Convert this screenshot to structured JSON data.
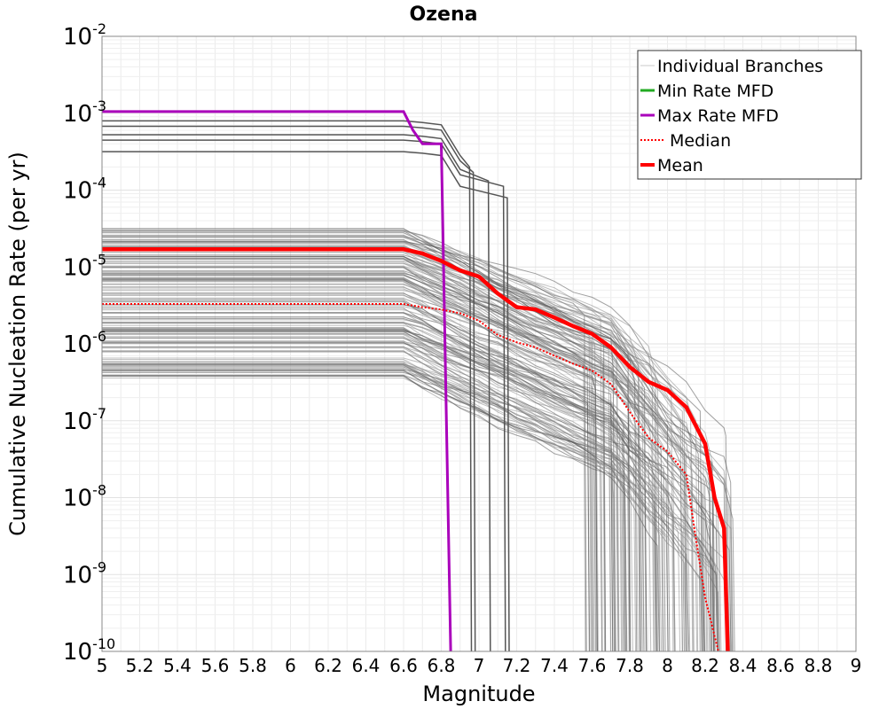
{
  "chart_data": {
    "type": "line",
    "title": "Ozena",
    "xlabel": "Magnitude",
    "ylabel": "Cumulative Nucleation Rate (per yr)",
    "xlim": [
      5,
      9
    ],
    "ylim": [
      1e-10,
      0.01
    ],
    "yscale": "log",
    "grid": true,
    "legend_position": "top-right",
    "x_ticks": [
      "5",
      "5.2",
      "5.4",
      "5.6",
      "5.8",
      "6",
      "6.2",
      "6.4",
      "6.6",
      "6.8",
      "7",
      "7.2",
      "7.4",
      "7.6",
      "7.8",
      "8",
      "8.2",
      "8.4",
      "8.6",
      "8.8",
      "9"
    ],
    "y_ticks": [
      {
        "base": "10",
        "exp": "-10",
        "value": 1e-10
      },
      {
        "base": "10",
        "exp": "-9",
        "value": 1e-09
      },
      {
        "base": "10",
        "exp": "-8",
        "value": 1e-08
      },
      {
        "base": "10",
        "exp": "-7",
        "value": 1e-07
      },
      {
        "base": "10",
        "exp": "-6",
        "value": 1e-06
      },
      {
        "base": "10",
        "exp": "-5",
        "value": 1e-05
      },
      {
        "base": "10",
        "exp": "-4",
        "value": 0.0001
      },
      {
        "base": "10",
        "exp": "-3",
        "value": 0.001
      },
      {
        "base": "10",
        "exp": "-2",
        "value": 0.01
      }
    ],
    "legend": [
      {
        "label": "Individual Branches",
        "color": "#c8c8c8",
        "style": "thin"
      },
      {
        "label": "Min Rate MFD",
        "color": "#22aa22",
        "style": "solid"
      },
      {
        "label": "Max Rate MFD",
        "color": "#aa00bb",
        "style": "solid"
      },
      {
        "label": "Median",
        "color": "#ff0000",
        "style": "dotted"
      },
      {
        "label": "Mean",
        "color": "#ff0000",
        "style": "thick"
      }
    ],
    "series": [
      {
        "name": "Max Rate MFD",
        "color": "#aa00bb",
        "x": [
          5.0,
          6.6,
          6.65,
          6.7,
          6.75,
          6.8,
          6.85
        ],
        "y": [
          0.00105,
          0.00105,
          0.0006,
          0.0004,
          0.0004,
          0.0004,
          1e-10
        ]
      },
      {
        "name": "Mean",
        "color": "#ff0000",
        "x": [
          5.0,
          6.6,
          6.7,
          6.8,
          6.9,
          7.0,
          7.1,
          7.2,
          7.3,
          7.4,
          7.5,
          7.6,
          7.7,
          7.8,
          7.9,
          8.0,
          8.1,
          8.2,
          8.25,
          8.3,
          8.32
        ],
        "y": [
          1.7e-05,
          1.7e-05,
          1.5e-05,
          1.2e-05,
          9e-06,
          7.5e-06,
          4.5e-06,
          3e-06,
          2.8e-06,
          2.2e-06,
          1.7e-06,
          1.35e-06,
          9e-07,
          5e-07,
          3.2e-07,
          2.5e-07,
          1.5e-07,
          5e-08,
          1e-08,
          4e-09,
          1e-10
        ]
      },
      {
        "name": "Median",
        "color": "#ff0000",
        "x": [
          5.0,
          6.6,
          6.7,
          6.8,
          6.9,
          7.0,
          7.1,
          7.2,
          7.3,
          7.4,
          7.5,
          7.6,
          7.7,
          7.8,
          7.9,
          8.0,
          8.1,
          8.15,
          8.2,
          8.27
        ],
        "y": [
          3.3e-06,
          3.3e-06,
          3e-06,
          2.8e-06,
          2.5e-06,
          2e-06,
          1.3e-06,
          1.05e-06,
          9e-07,
          7e-07,
          5.5e-07,
          4.5e-07,
          3e-07,
          1.3e-07,
          6e-08,
          4e-08,
          2e-08,
          3e-09,
          5e-10,
          1e-10
        ]
      }
    ],
    "individual_branches_note": "many grey branch curves"
  }
}
